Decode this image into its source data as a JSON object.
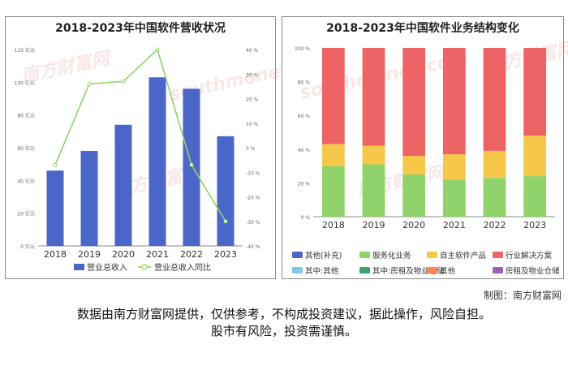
{
  "chart_data": [
    {
      "type": "bar",
      "title": "2018-2023年中国软件营收状况",
      "categories": [
        "2018",
        "2019",
        "2020",
        "2021",
        "2022",
        "2023"
      ],
      "series": [
        {
          "name": "营业总收入",
          "type": "bar",
          "axis": "left",
          "values": [
            46,
            58,
            74,
            103,
            96,
            67
          ],
          "color": "#4a66c8"
        },
        {
          "name": "营业总收入同比",
          "type": "line",
          "axis": "right",
          "values": [
            -7,
            26,
            27,
            40,
            -7,
            -30
          ],
          "color": "#8fd36a"
        }
      ],
      "yleft": {
        "min": 0,
        "max": 120,
        "step": 20,
        "ticks": [
          "0 亿元",
          "20 亿元",
          "40 亿元",
          "60 亿元",
          "80 亿元",
          "100 亿元",
          "120 亿元"
        ]
      },
      "yright": {
        "min": -40,
        "max": 40,
        "step": 10,
        "ticks": [
          "-40 %",
          "-30 %",
          "-20 %",
          "-10 %",
          "0 %",
          "10 %",
          "20 %",
          "30 %",
          "40 %"
        ]
      },
      "legend": "bottom",
      "grid": false
    },
    {
      "type": "bar",
      "stacked": true,
      "title": "2018-2023年中国软件业务结构变化",
      "categories": [
        "2018",
        "2019",
        "2020",
        "2021",
        "2022",
        "2023"
      ],
      "series": [
        {
          "name": "其他(补充)",
          "values": [
            0,
            0,
            0,
            0,
            0,
            0
          ],
          "color": "#4a66c8"
        },
        {
          "name": "服务化业务",
          "values": [
            30,
            31,
            25,
            22,
            23,
            24
          ],
          "color": "#8fd36a"
        },
        {
          "name": "自主软件产品",
          "values": [
            13,
            11,
            11,
            15,
            16,
            24
          ],
          "color": "#f6c84a"
        },
        {
          "name": "行业解决方案",
          "values": [
            57,
            58,
            64,
            63,
            61,
            52
          ],
          "color": "#ee6464"
        },
        {
          "name": "其中:其他",
          "values": [
            0,
            0,
            0,
            0,
            0,
            0
          ],
          "color": "#7ec8e3"
        },
        {
          "name": "其中:房租及物业仓储",
          "values": [
            0,
            0,
            0,
            0,
            0,
            0
          ],
          "color": "#3ba272"
        },
        {
          "name": "其他",
          "values": [
            0,
            0,
            0,
            0,
            0,
            0
          ],
          "color": "#fc8452"
        },
        {
          "name": "房租及物业仓储",
          "values": [
            0,
            0,
            0,
            0,
            0,
            0
          ],
          "color": "#9a60b4"
        }
      ],
      "y": {
        "min": 0,
        "max": 100,
        "step": 20,
        "ticks": [
          "0 %",
          "20 %",
          "40 %",
          "60 %",
          "80 %",
          "100 %"
        ]
      },
      "legend": "bottom",
      "grid": false
    }
  ],
  "watermark": {
    "brand": "南方财富网",
    "url": "southmoney.com"
  },
  "credit": "制图：南方财富网",
  "disclaimer": [
    "数据由南方财富网提供，仅供参考，不构成投资建议，据此操作，风险自担。",
    "股市有风险，投资需谨慎。"
  ]
}
